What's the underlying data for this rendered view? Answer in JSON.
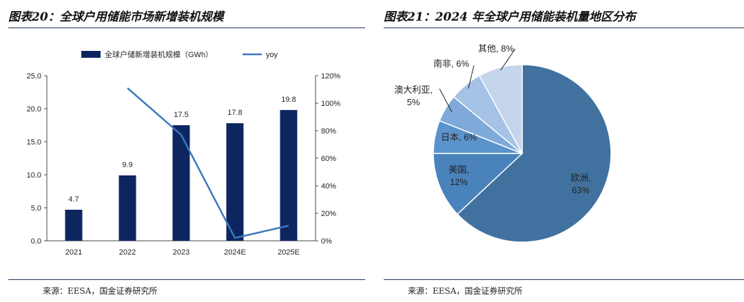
{
  "left": {
    "title": "图表20：全球户用储能市场新增装机规模",
    "source": "来源：EESA，国金证券研究所"
  },
  "right": {
    "title": "图表21：2024 年全球户用储能装机量地区分布",
    "source": "来源：EESA，国金证券研究所"
  },
  "chart_data": [
    {
      "type": "bar",
      "categories": [
        "2021",
        "2022",
        "2023",
        "2024E",
        "2025E"
      ],
      "series": [
        {
          "name": "全球户储新增装机规模（GWh）",
          "kind": "bar",
          "axis": "left",
          "values": [
            4.7,
            9.9,
            17.5,
            17.8,
            19.8
          ],
          "color": "#0e2660"
        },
        {
          "name": "yoy",
          "kind": "line",
          "axis": "right",
          "values": [
            null,
            111,
            77,
            2,
            11
          ],
          "color": "#3a78bd"
        }
      ],
      "data_labels": [
        "4.7",
        "9.9",
        "17.5",
        "17.8",
        "19.8"
      ],
      "ylim_left": [
        0,
        25
      ],
      "ylim_right": [
        0,
        120
      ],
      "yticks_left": [
        "0.0",
        "5.0",
        "10.0",
        "15.0",
        "20.0",
        "25.0"
      ],
      "yticks_right": [
        "0%",
        "20%",
        "40%",
        "60%",
        "80%",
        "100%",
        "120%"
      ],
      "legend_position": "top"
    },
    {
      "type": "pie",
      "labels": [
        "欧洲",
        "美国",
        "日本",
        "澳大利亚",
        "南非",
        "其他"
      ],
      "values": [
        63,
        12,
        6,
        5,
        6,
        8
      ],
      "label_texts": [
        "欧洲,",
        "美国,",
        "日本, 6%",
        "澳大利亚,",
        "南非, 6%",
        "其他, 8%"
      ],
      "pct_texts": [
        "63%",
        "12%",
        "",
        "5%",
        "",
        ""
      ],
      "colors": [
        "#41729f",
        "#4a82bb",
        "#5b93cc",
        "#7ea9d9",
        "#a6c2e5",
        "#c5d5ec"
      ]
    }
  ]
}
